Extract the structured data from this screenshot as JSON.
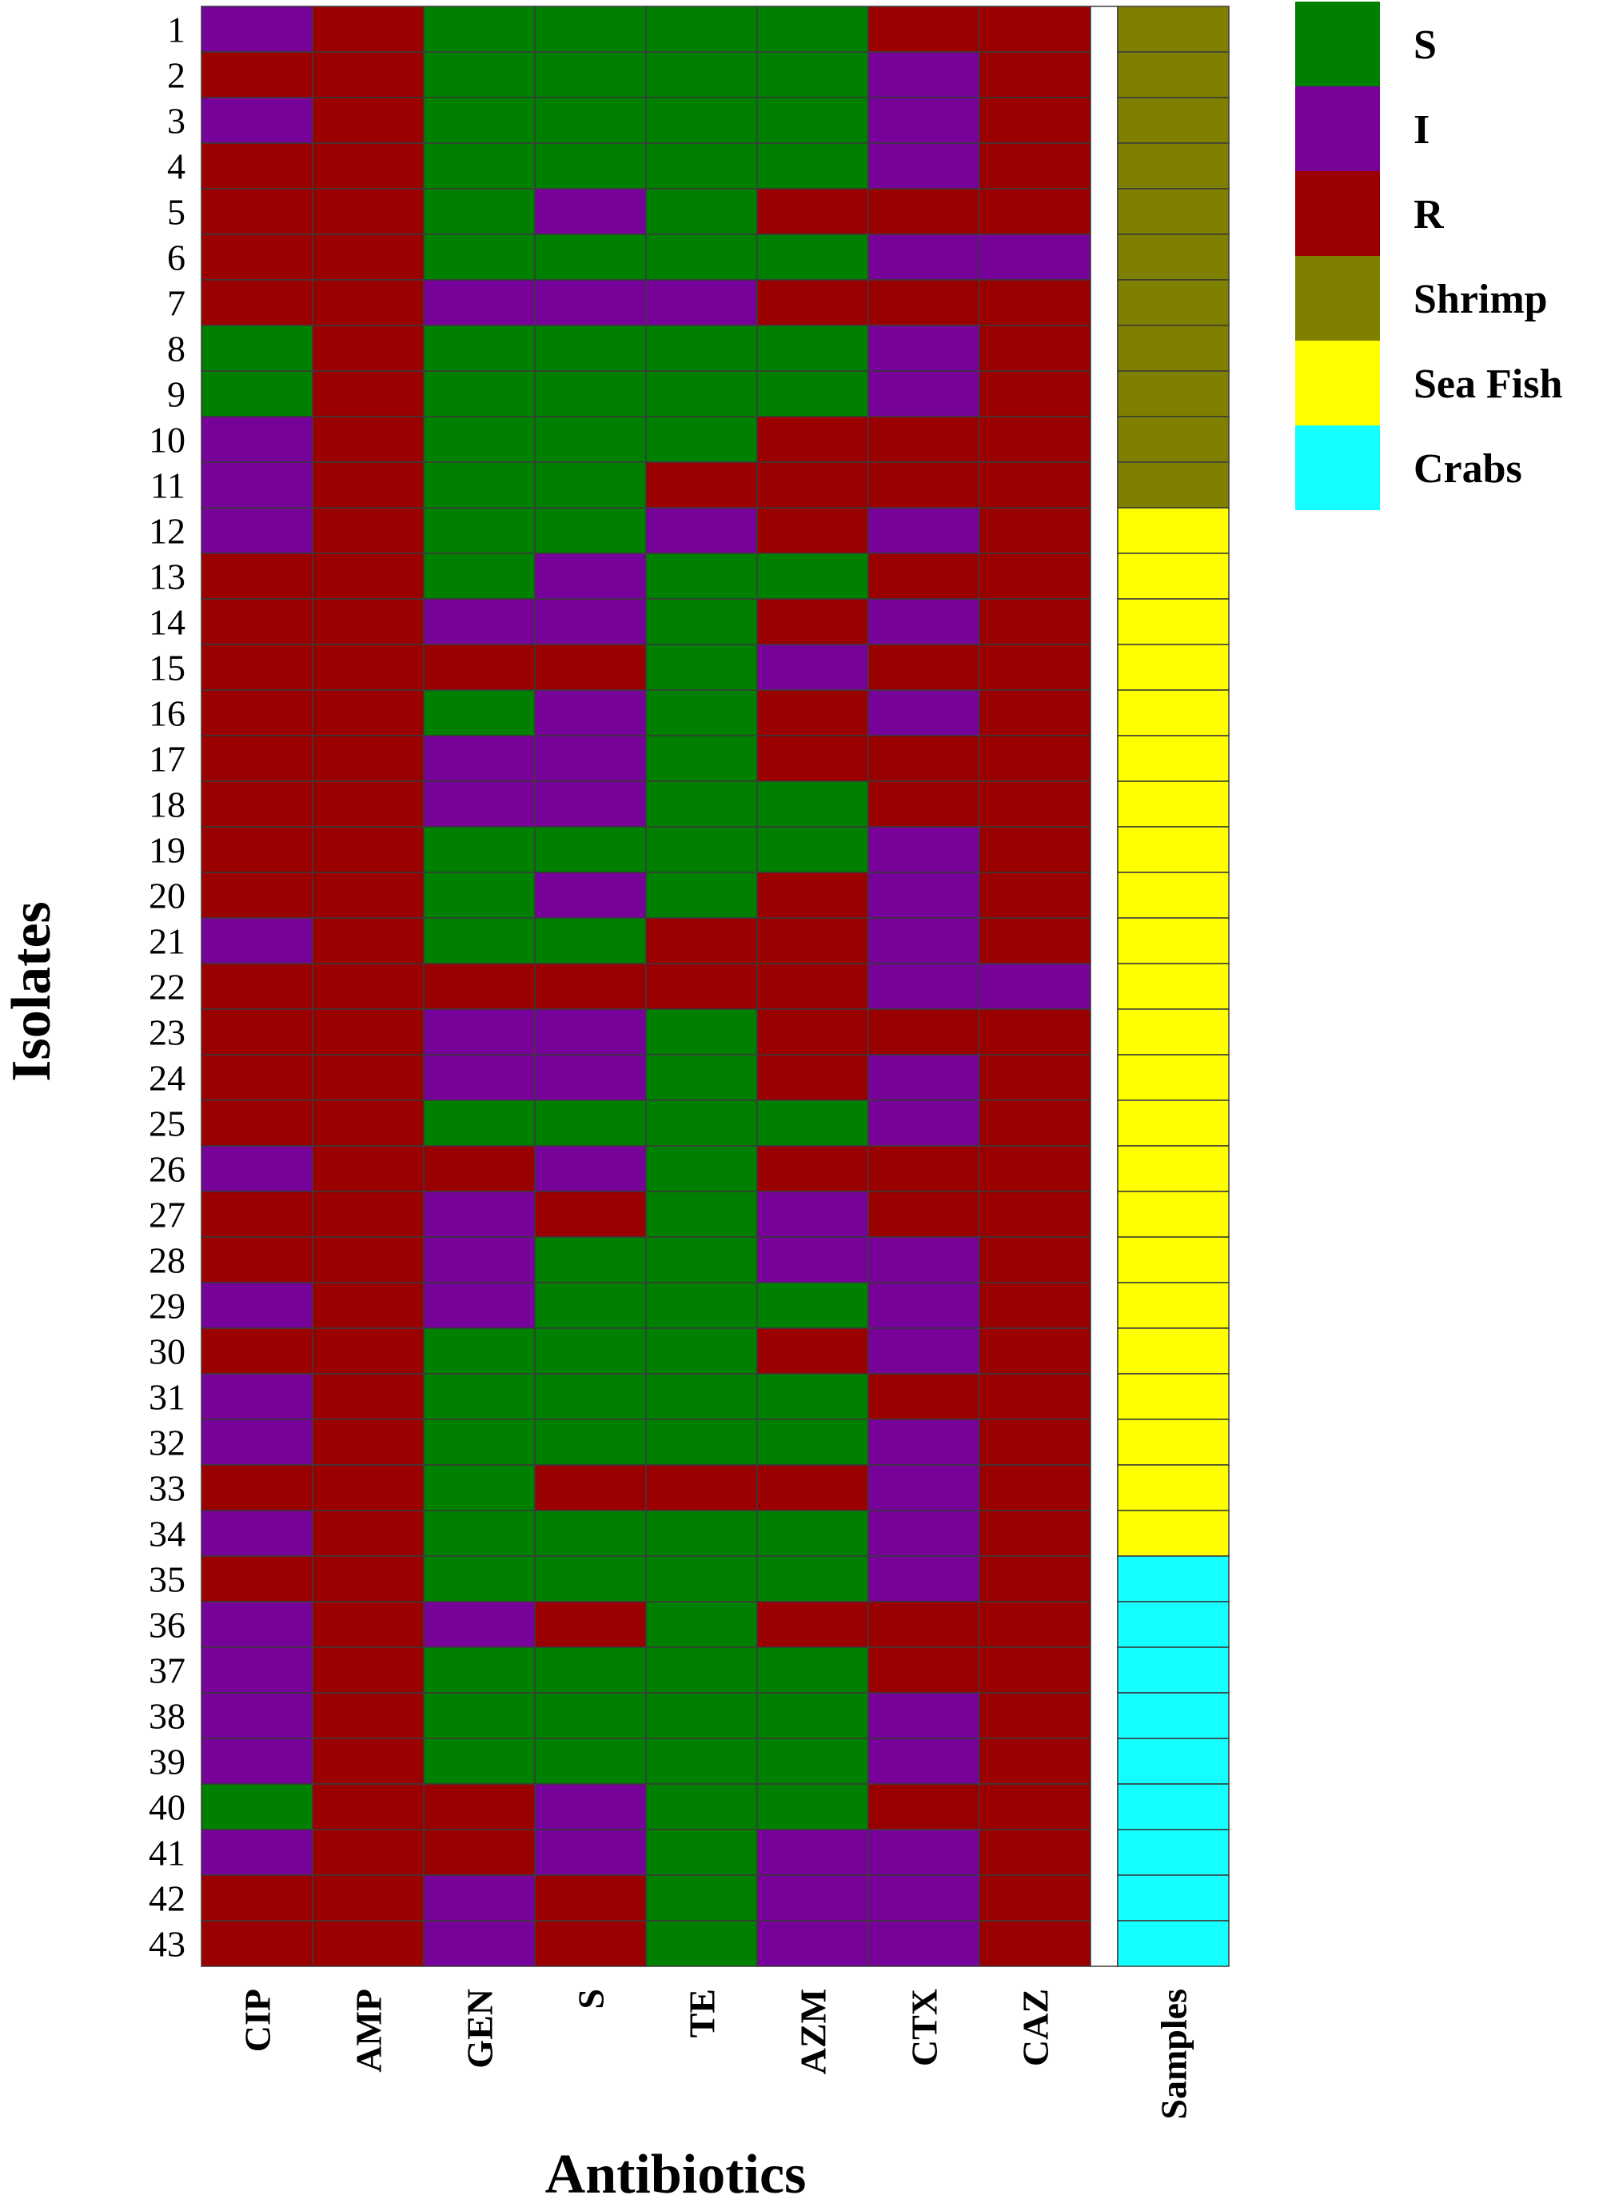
{
  "chart_data": {
    "type": "heatmap",
    "xlabel": "Antibiotics",
    "ylabel": "Isolates",
    "antibiotics": [
      "CIP",
      "AMP",
      "GEN",
      "S",
      "TE",
      "AZM",
      "CTX",
      "CAZ"
    ],
    "samples_label": "Samples",
    "isolates": [
      "1",
      "2",
      "3",
      "4",
      "5",
      "6",
      "7",
      "8",
      "9",
      "10",
      "11",
      "12",
      "13",
      "14",
      "15",
      "16",
      "17",
      "18",
      "19",
      "20",
      "21",
      "22",
      "23",
      "24",
      "25",
      "26",
      "27",
      "28",
      "29",
      "30",
      "31",
      "32",
      "33",
      "34",
      "35",
      "36",
      "37",
      "38",
      "39",
      "40",
      "41",
      "42",
      "43"
    ],
    "legend": [
      {
        "label": "S",
        "color": "#008000"
      },
      {
        "label": "I",
        "color": "#760299"
      },
      {
        "label": "R",
        "color": "#9b0000"
      },
      {
        "label": "Shrimp",
        "color": "#808000"
      },
      {
        "label": "Sea Fish",
        "color": "#ffff00"
      },
      {
        "label": "Crabs",
        "color": "#14ffff"
      }
    ],
    "values": [
      [
        "I",
        "R",
        "S",
        "S",
        "S",
        "S",
        "R",
        "R"
      ],
      [
        "R",
        "R",
        "S",
        "S",
        "S",
        "S",
        "I",
        "R"
      ],
      [
        "I",
        "R",
        "S",
        "S",
        "S",
        "S",
        "I",
        "R"
      ],
      [
        "R",
        "R",
        "S",
        "S",
        "S",
        "S",
        "I",
        "R"
      ],
      [
        "R",
        "R",
        "S",
        "I",
        "S",
        "R",
        "R",
        "R"
      ],
      [
        "R",
        "R",
        "S",
        "S",
        "S",
        "S",
        "I",
        "I"
      ],
      [
        "R",
        "R",
        "I",
        "I",
        "I",
        "R",
        "R",
        "R"
      ],
      [
        "S",
        "R",
        "S",
        "S",
        "S",
        "S",
        "I",
        "R"
      ],
      [
        "S",
        "R",
        "S",
        "S",
        "S",
        "S",
        "I",
        "R"
      ],
      [
        "I",
        "R",
        "S",
        "S",
        "S",
        "R",
        "R",
        "R"
      ],
      [
        "I",
        "R",
        "S",
        "S",
        "R",
        "R",
        "R",
        "R"
      ],
      [
        "I",
        "R",
        "S",
        "S",
        "I",
        "R",
        "I",
        "R"
      ],
      [
        "R",
        "R",
        "S",
        "I",
        "S",
        "S",
        "R",
        "R"
      ],
      [
        "R",
        "R",
        "I",
        "I",
        "S",
        "R",
        "I",
        "R"
      ],
      [
        "R",
        "R",
        "R",
        "R",
        "S",
        "I",
        "R",
        "R"
      ],
      [
        "R",
        "R",
        "S",
        "I",
        "S",
        "R",
        "I",
        "R"
      ],
      [
        "R",
        "R",
        "I",
        "I",
        "S",
        "R",
        "R",
        "R"
      ],
      [
        "R",
        "R",
        "I",
        "I",
        "S",
        "S",
        "R",
        "R"
      ],
      [
        "R",
        "R",
        "S",
        "S",
        "S",
        "S",
        "I",
        "R"
      ],
      [
        "R",
        "R",
        "S",
        "I",
        "S",
        "R",
        "I",
        "R"
      ],
      [
        "I",
        "R",
        "S",
        "S",
        "R",
        "R",
        "I",
        "R"
      ],
      [
        "R",
        "R",
        "R",
        "R",
        "R",
        "R",
        "I",
        "I"
      ],
      [
        "R",
        "R",
        "I",
        "I",
        "S",
        "R",
        "R",
        "R"
      ],
      [
        "R",
        "R",
        "I",
        "I",
        "S",
        "R",
        "I",
        "R"
      ],
      [
        "R",
        "R",
        "S",
        "S",
        "S",
        "S",
        "I",
        "R"
      ],
      [
        "I",
        "R",
        "R",
        "I",
        "S",
        "R",
        "R",
        "R"
      ],
      [
        "R",
        "R",
        "I",
        "R",
        "S",
        "I",
        "R",
        "R"
      ],
      [
        "R",
        "R",
        "I",
        "S",
        "S",
        "I",
        "I",
        "R"
      ],
      [
        "I",
        "R",
        "I",
        "S",
        "S",
        "S",
        "I",
        "R"
      ],
      [
        "R",
        "R",
        "S",
        "S",
        "S",
        "R",
        "I",
        "R"
      ],
      [
        "I",
        "R",
        "S",
        "S",
        "S",
        "S",
        "R",
        "R"
      ],
      [
        "I",
        "R",
        "S",
        "S",
        "S",
        "S",
        "I",
        "R"
      ],
      [
        "R",
        "R",
        "S",
        "R",
        "R",
        "R",
        "I",
        "R"
      ],
      [
        "I",
        "R",
        "S",
        "S",
        "S",
        "S",
        "I",
        "R"
      ],
      [
        "R",
        "R",
        "S",
        "S",
        "S",
        "S",
        "I",
        "R"
      ],
      [
        "I",
        "R",
        "I",
        "R",
        "S",
        "R",
        "R",
        "R"
      ],
      [
        "I",
        "R",
        "S",
        "S",
        "S",
        "S",
        "R",
        "R"
      ],
      [
        "I",
        "R",
        "S",
        "S",
        "S",
        "S",
        "I",
        "R"
      ],
      [
        "I",
        "R",
        "S",
        "S",
        "S",
        "S",
        "I",
        "R"
      ],
      [
        "S",
        "R",
        "R",
        "I",
        "S",
        "S",
        "R",
        "R"
      ],
      [
        "I",
        "R",
        "R",
        "I",
        "S",
        "I",
        "I",
        "R"
      ],
      [
        "R",
        "R",
        "I",
        "R",
        "S",
        "I",
        "I",
        "R"
      ],
      [
        "R",
        "R",
        "I",
        "R",
        "S",
        "I",
        "I",
        "R"
      ]
    ],
    "samples": [
      "Shrimp",
      "Shrimp",
      "Shrimp",
      "Shrimp",
      "Shrimp",
      "Shrimp",
      "Shrimp",
      "Shrimp",
      "Shrimp",
      "Shrimp",
      "Shrimp",
      "Sea Fish",
      "Sea Fish",
      "Sea Fish",
      "Sea Fish",
      "Sea Fish",
      "Sea Fish",
      "Sea Fish",
      "Sea Fish",
      "Sea Fish",
      "Sea Fish",
      "Sea Fish",
      "Sea Fish",
      "Sea Fish",
      "Sea Fish",
      "Sea Fish",
      "Sea Fish",
      "Sea Fish",
      "Sea Fish",
      "Sea Fish",
      "Sea Fish",
      "Sea Fish",
      "Sea Fish",
      "Sea Fish",
      "Crabs",
      "Crabs",
      "Crabs",
      "Crabs",
      "Crabs",
      "Crabs",
      "Crabs",
      "Crabs",
      "Crabs"
    ]
  }
}
